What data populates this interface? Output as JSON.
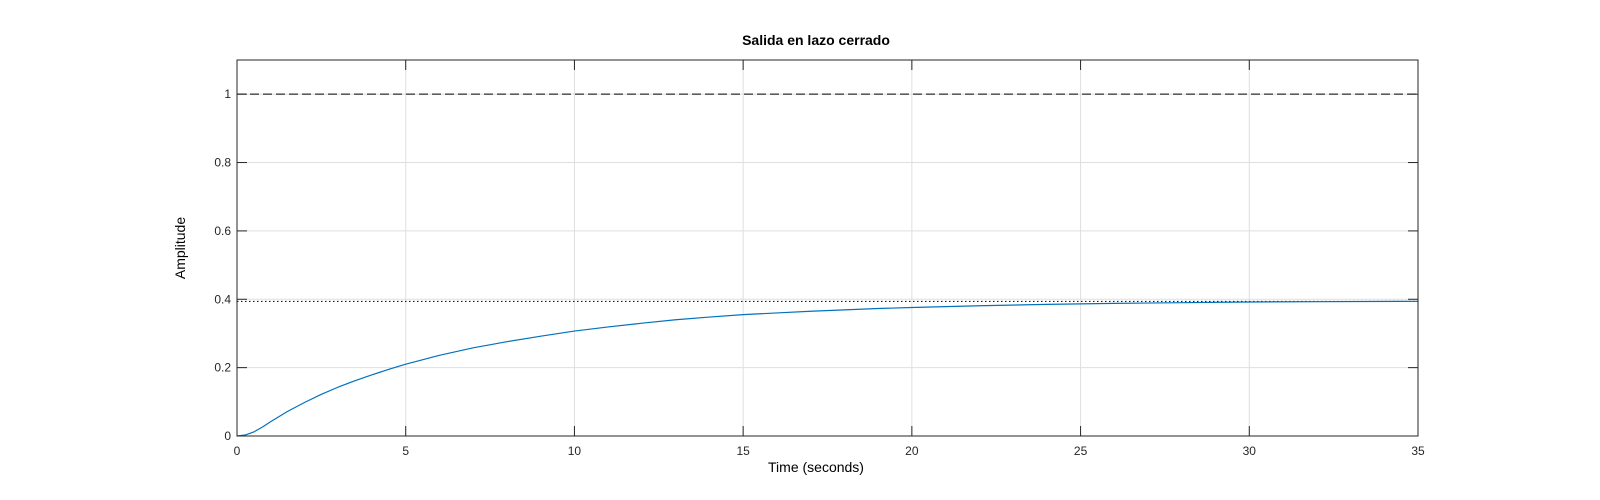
{
  "chart_data": {
    "type": "line",
    "title": "Salida en lazo cerrado",
    "xlabel": "Time (seconds)",
    "ylabel": "Amplitude",
    "xlim": [
      0,
      35
    ],
    "ylim": [
      0,
      1.1
    ],
    "xticks": [
      0,
      5,
      10,
      15,
      20,
      25,
      30,
      35
    ],
    "xtick_labels": [
      "0",
      "5",
      "10",
      "15",
      "20",
      "25",
      "30",
      "35"
    ],
    "yticks": [
      0,
      0.2,
      0.4,
      0.6,
      0.8,
      1
    ],
    "ytick_labels": [
      "0",
      "0.2",
      "0.4",
      "0.6",
      "0.8",
      "1"
    ],
    "grid": true,
    "series": [
      {
        "color": "#0072BD",
        "style": "solid",
        "x": [
          0,
          0.25,
          0.5,
          0.75,
          1,
          1.5,
          2,
          2.5,
          3,
          3.5,
          4,
          4.5,
          5,
          6,
          7,
          8,
          9,
          10,
          11,
          12,
          13,
          14,
          15,
          16,
          17,
          18,
          19,
          20,
          22,
          24,
          26,
          28,
          30,
          32,
          35
        ],
        "y": [
          0,
          0.003,
          0.012,
          0.026,
          0.042,
          0.072,
          0.098,
          0.122,
          0.143,
          0.162,
          0.179,
          0.195,
          0.21,
          0.236,
          0.258,
          0.276,
          0.292,
          0.307,
          0.319,
          0.33,
          0.34,
          0.348,
          0.355,
          0.36,
          0.365,
          0.369,
          0.373,
          0.376,
          0.381,
          0.385,
          0.388,
          0.39,
          0.392,
          0.393,
          0.394
        ]
      }
    ],
    "reference_lines": [
      {
        "y": 1,
        "style": "dashed",
        "color": "#000000"
      },
      {
        "y": 0.394,
        "style": "dotted",
        "color": "#000000"
      }
    ]
  }
}
